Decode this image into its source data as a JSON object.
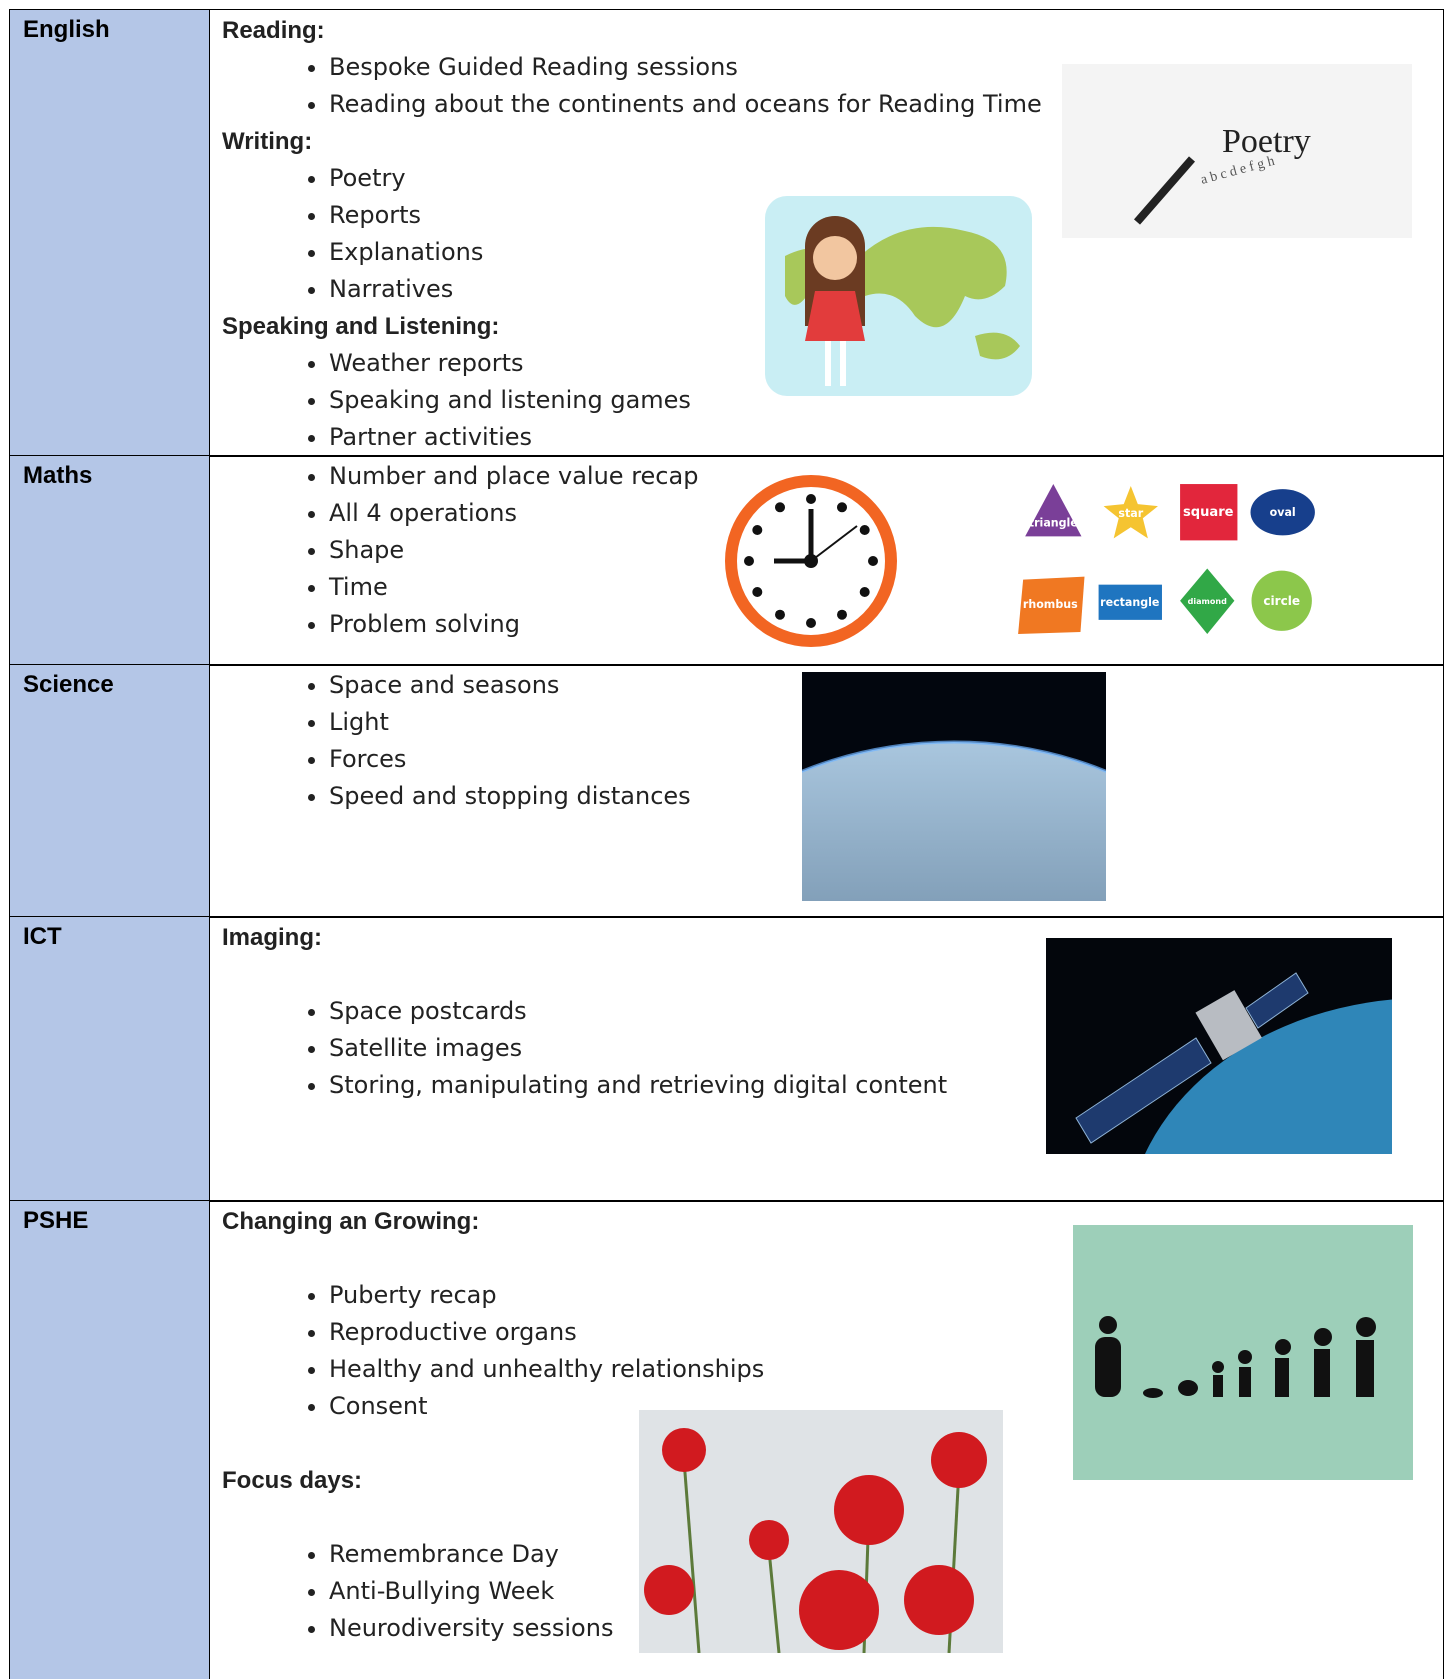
{
  "rows": [
    {
      "subject": "English",
      "sections": [
        {
          "heading": "Reading:",
          "items": [
            "Bespoke Guided Reading sessions",
            "Reading about the continents and oceans for Reading Time"
          ]
        },
        {
          "heading": "Writing:",
          "items": [
            "Poetry",
            "Reports",
            "Explanations",
            "Narratives"
          ]
        },
        {
          "heading": "Speaking and Listening:",
          "items": [
            "Weather reports",
            "Speaking and listening games",
            "Partner activities"
          ]
        }
      ]
    },
    {
      "subject": "Maths",
      "sections": [
        {
          "items": [
            "Number and place value recap",
            "All 4 operations",
            "Shape",
            "Time",
            "Problem solving"
          ]
        }
      ]
    },
    {
      "subject": "Science",
      "sections": [
        {
          "items": [
            "Space and seasons",
            "Light",
            "Forces",
            "Speed and stopping distances"
          ]
        }
      ]
    },
    {
      "subject": "ICT",
      "sections": [
        {
          "heading": "Imaging:",
          "items": [
            "Space postcards",
            "Satellite images",
            "Storing, manipulating and retrieving digital content"
          ]
        }
      ]
    },
    {
      "subject": "PSHE",
      "sections": [
        {
          "heading": "Changing an Growing:",
          "items": [
            "Puberty recap",
            "Reproductive organs",
            "Healthy and unhealthy relationships",
            "Consent"
          ]
        },
        {
          "heading": "Focus days:",
          "items": [
            "Remembrance Day",
            "Anti-Bullying Week",
            "Neurodiversity sessions"
          ]
        }
      ]
    }
  ],
  "images": {
    "poetry": "Poetry",
    "shapes": [
      "triangle",
      "star",
      "square",
      "oval",
      "rhombus",
      "rectangle",
      "diamond",
      "circle"
    ]
  }
}
